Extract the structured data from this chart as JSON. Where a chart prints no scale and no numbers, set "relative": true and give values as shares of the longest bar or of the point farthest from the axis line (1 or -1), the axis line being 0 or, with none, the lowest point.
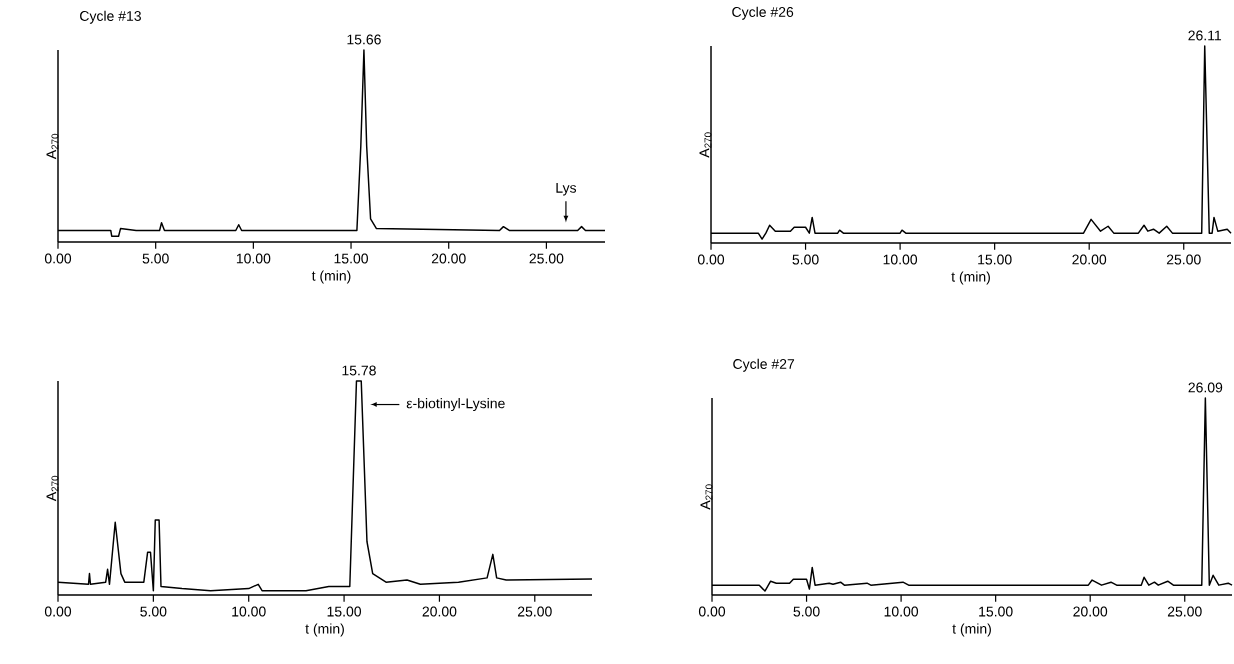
{
  "chart_data": [
    {
      "type": "line",
      "title": "Cycle #13",
      "xlabel": "t (min)",
      "ylabel": "A$_{270}$",
      "relative": true,
      "color": "#000000",
      "xlim": [
        0,
        28
      ],
      "xticks": [
        {
          "value": 0,
          "label": "0.00"
        },
        {
          "value": 5,
          "label": "5.00"
        },
        {
          "value": 10,
          "label": "10.00"
        },
        {
          "value": 15,
          "label": "15.00"
        },
        {
          "value": 20,
          "label": "20.00"
        },
        {
          "value": 25,
          "label": "25.00"
        }
      ],
      "x": [
        0,
        2.7,
        2.75,
        3.1,
        3.2,
        4,
        5.2,
        5.3,
        5.45,
        9.1,
        9.25,
        9.4,
        15.3,
        15.5,
        15.66,
        15.8,
        16.0,
        16.3,
        22.6,
        22.8,
        23.1,
        26.6,
        26.8,
        27,
        28
      ],
      "values": [
        0.06,
        0.06,
        0.03,
        0.03,
        0.07,
        0.06,
        0.06,
        0.1,
        0.06,
        0.06,
        0.09,
        0.06,
        0.06,
        0.5,
        1,
        0.5,
        0.12,
        0.07,
        0.06,
        0.08,
        0.06,
        0.06,
        0.08,
        0.06,
        0.06
      ],
      "annotations": [
        {
          "text": "15.66",
          "x": 15.66,
          "y": 1
        },
        {
          "text": "Lys",
          "x": 26,
          "y": 0.06
        }
      ]
    },
    {
      "type": "line",
      "title": "Cycle #26",
      "xlabel": "t (min)",
      "ylabel": "A$_{270}$",
      "relative": true,
      "color": "#000000",
      "xlim": [
        0,
        27.5
      ],
      "xticks": [
        {
          "value": 0,
          "label": "0.00"
        },
        {
          "value": 5,
          "label": "5.00"
        },
        {
          "value": 10,
          "label": "10.00"
        },
        {
          "value": 15,
          "label": "15.00"
        },
        {
          "value": 20,
          "label": "20.00"
        },
        {
          "value": 25,
          "label": "25.00"
        }
      ],
      "x": [
        0,
        2.5,
        2.7,
        2.9,
        3.1,
        3.4,
        4.2,
        4.4,
        5.0,
        5.2,
        5.35,
        5.5,
        6.7,
        6.8,
        7,
        10,
        10.1,
        10.3,
        19.7,
        20.1,
        20.6,
        21.0,
        21.3,
        22.6,
        22.9,
        23.1,
        23.4,
        23.7,
        24.1,
        24.4,
        25.95,
        26.11,
        26.35,
        26.5,
        26.6,
        26.8,
        27.3,
        27.5
      ],
      "values": [
        0.05,
        0.05,
        0.02,
        0.05,
        0.09,
        0.06,
        0.06,
        0.08,
        0.08,
        0.05,
        0.13,
        0.05,
        0.05,
        0.065,
        0.05,
        0.05,
        0.065,
        0.05,
        0.05,
        0.12,
        0.06,
        0.085,
        0.05,
        0.05,
        0.09,
        0.06,
        0.07,
        0.05,
        0.085,
        0.05,
        0.05,
        1,
        0.05,
        0.05,
        0.13,
        0.06,
        0.07,
        0.05
      ],
      "annotations": [
        {
          "text": "26.11",
          "x": 26.11,
          "y": 1
        }
      ]
    },
    {
      "type": "line",
      "xlabel": "t (min)",
      "ylabel": "A$_{270}$",
      "relative": true,
      "color": "#000000",
      "xlim": [
        0,
        28
      ],
      "xticks": [
        {
          "value": 0,
          "label": "0.00"
        },
        {
          "value": 5,
          "label": "5.00"
        },
        {
          "value": 10,
          "label": "10.00"
        },
        {
          "value": 15,
          "label": "15.00"
        },
        {
          "value": 20,
          "label": "20.00"
        },
        {
          "value": 25,
          "label": "25.00"
        }
      ],
      "x": [
        0,
        1.6,
        1.65,
        1.7,
        2.5,
        2.6,
        2.7,
        3.0,
        3.3,
        3.5,
        4.5,
        4.7,
        4.85,
        5.0,
        5.1,
        5.3,
        5.4,
        6.5,
        8,
        10,
        10.5,
        10.7,
        13,
        14.2,
        15.3,
        15.65,
        15.9,
        16.2,
        16.5,
        17.2,
        18.3,
        19,
        21,
        22.5,
        22.8,
        23,
        23.5,
        28
      ],
      "values": [
        0.06,
        0.05,
        0.1,
        0.05,
        0.06,
        0.12,
        0.05,
        0.34,
        0.1,
        0.06,
        0.06,
        0.2,
        0.2,
        0.02,
        0.35,
        0.35,
        0.04,
        0.03,
        0.02,
        0.03,
        0.05,
        0.02,
        0.02,
        0.04,
        0.04,
        1,
        1,
        0.25,
        0.1,
        0.06,
        0.07,
        0.05,
        0.06,
        0.08,
        0.19,
        0.08,
        0.07,
        0.075
      ],
      "annotations": [
        {
          "text": "15.78",
          "x": 15.78,
          "y": 1
        },
        {
          "text": "ε-biotinyl-Lysine",
          "x": 16.5,
          "y": 0.89
        }
      ]
    },
    {
      "type": "line",
      "title": "Cycle #27",
      "xlabel": "t (min)",
      "ylabel": "A$_{270}$",
      "relative": true,
      "color": "#000000",
      "xlim": [
        0,
        27.5
      ],
      "xticks": [
        {
          "value": 0,
          "label": "0.00"
        },
        {
          "value": 5,
          "label": "5.00"
        },
        {
          "value": 10,
          "label": "10.00"
        },
        {
          "value": 15,
          "label": "15.00"
        },
        {
          "value": 20,
          "label": "20.00"
        },
        {
          "value": 25,
          "label": "25.00"
        }
      ],
      "x": [
        0,
        2.5,
        2.8,
        3.1,
        3.4,
        4.1,
        4.3,
        5.0,
        5.15,
        5.3,
        5.45,
        6.2,
        6.4,
        6.8,
        7.0,
        8.2,
        8.4,
        10.1,
        10.4,
        19.9,
        20.1,
        20.6,
        21.1,
        21.4,
        22.7,
        22.85,
        23.1,
        23.4,
        23.6,
        24.1,
        24.4,
        25.9,
        26.09,
        26.3,
        26.5,
        26.8,
        27.3,
        27.5
      ],
      "values": [
        0.05,
        0.05,
        0.02,
        0.07,
        0.06,
        0.06,
        0.08,
        0.08,
        0.03,
        0.14,
        0.05,
        0.06,
        0.055,
        0.065,
        0.05,
        0.06,
        0.05,
        0.065,
        0.05,
        0.05,
        0.076,
        0.05,
        0.065,
        0.05,
        0.05,
        0.09,
        0.05,
        0.065,
        0.05,
        0.07,
        0.05,
        0.05,
        1,
        0.05,
        0.1,
        0.05,
        0.06,
        0.05
      ],
      "annotations": [
        {
          "text": "26.09",
          "x": 26.09,
          "y": 1
        }
      ]
    }
  ]
}
